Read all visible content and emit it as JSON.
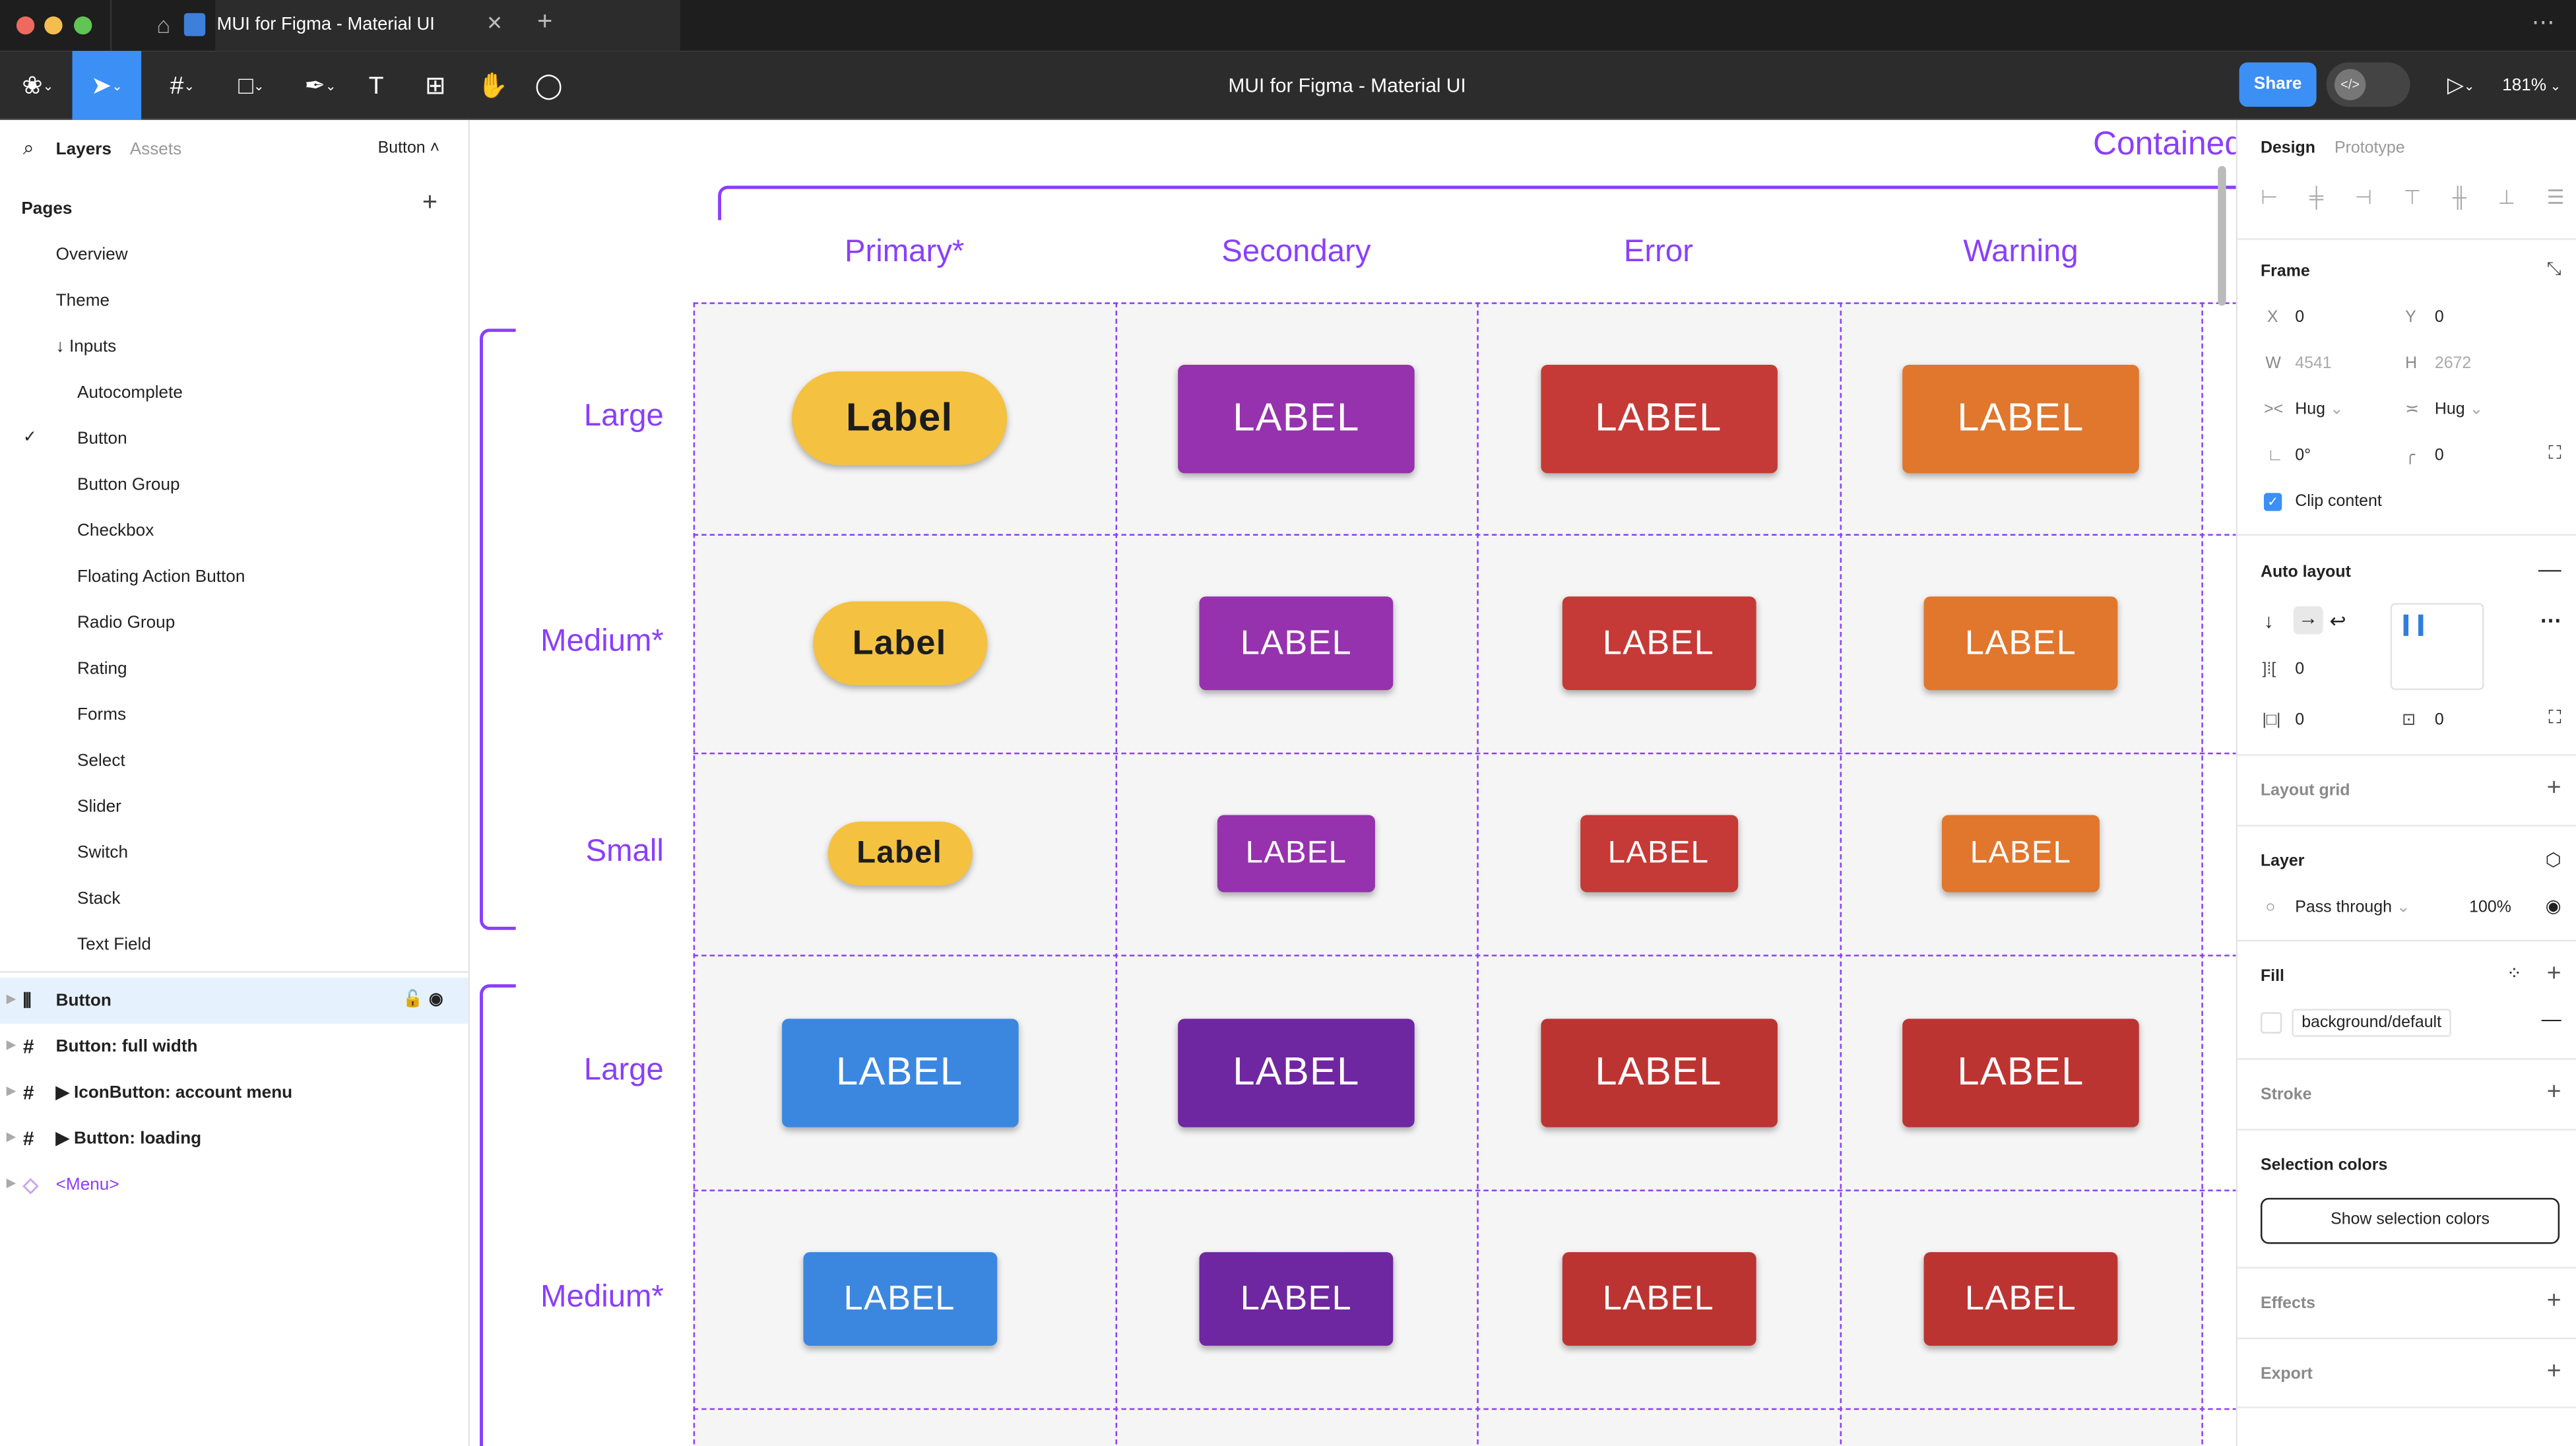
{
  "window": {
    "tab_title": "MUI for Figma - Material UI",
    "doc_title": "MUI for Figma - Material UI",
    "share": "Share",
    "zoom": "181%"
  },
  "left": {
    "tabs": [
      "Layers",
      "Assets"
    ],
    "page_selector": "Button",
    "pages_title": "Pages",
    "pages": [
      "Overview",
      "Theme",
      "↓ Inputs",
      "Autocomplete",
      "Button",
      "Button Group",
      "Checkbox",
      "Floating Action Button",
      "Radio Group",
      "Rating",
      "Forms",
      "Select",
      "Slider",
      "Switch",
      "Stack",
      "Text Field"
    ],
    "current_page": "Button",
    "layers": [
      {
        "label": "Button",
        "icon": "auto-layout-icon",
        "selected": true
      },
      {
        "label": "Button: full width",
        "icon": "frame-icon"
      },
      {
        "label": "▶ IconButton: account menu",
        "icon": "frame-icon"
      },
      {
        "label": "▶ Button: loading",
        "icon": "frame-icon"
      },
      {
        "label": "<Menu>",
        "icon": "component-icon"
      }
    ]
  },
  "canvas": {
    "title": "Contained",
    "columns": [
      "Primary*",
      "Secondary",
      "Error",
      "Warning"
    ],
    "rows": [
      "Large",
      "Medium*",
      "Small",
      "Large",
      "Medium*"
    ],
    "cells": [
      [
        {
          "t": "Label",
          "c": "#F4C141",
          "pill": true
        },
        {
          "t": "LABEL",
          "c": "#9632AE"
        },
        {
          "t": "LABEL",
          "c": "#C53A36"
        },
        {
          "t": "LABEL",
          "c": "#E1762D"
        }
      ],
      [
        {
          "t": "Label",
          "c": "#F4C141",
          "pill": true
        },
        {
          "t": "LABEL",
          "c": "#9632AE"
        },
        {
          "t": "LABEL",
          "c": "#C53A36"
        },
        {
          "t": "LABEL",
          "c": "#E1762D"
        }
      ],
      [
        {
          "t": "Label",
          "c": "#F4C141",
          "pill": true
        },
        {
          "t": "LABEL",
          "c": "#9632AE"
        },
        {
          "t": "LABEL",
          "c": "#C53A36"
        },
        {
          "t": "LABEL",
          "c": "#E1762D"
        }
      ],
      [
        {
          "t": "LABEL",
          "c": "#3B87E0"
        },
        {
          "t": "LABEL",
          "c": "#6E27A0"
        },
        {
          "t": "LABEL",
          "c": "#BC3432"
        },
        {
          "t": "LABEL",
          "c": "#BC3432"
        }
      ],
      [
        {
          "t": "LABEL",
          "c": "#3B87E0"
        },
        {
          "t": "LABEL",
          "c": "#6E27A0"
        },
        {
          "t": "LABEL",
          "c": "#BC3432"
        },
        {
          "t": "LABEL",
          "c": "#BC3432"
        }
      ]
    ],
    "accent": "#8A3FFC"
  },
  "right": {
    "tabs": [
      "Design",
      "Prototype"
    ],
    "frame": {
      "title": "Frame",
      "x": "0",
      "y": "0",
      "w": "4541",
      "h": "2672",
      "w_mode": "Hug",
      "h_mode": "Hug",
      "rotation": "0°",
      "radius": "0",
      "clip_content": "Clip content",
      "clip_checked": true
    },
    "auto_layout": {
      "title": "Auto layout",
      "gap": "0",
      "padding_h": "0",
      "padding_v": "0"
    },
    "layout_grid": "Layout grid",
    "layer": {
      "title": "Layer",
      "blend": "Pass through",
      "opacity": "100%"
    },
    "fill": {
      "title": "Fill",
      "style": "background/default"
    },
    "stroke": "Stroke",
    "selection_colors": {
      "title": "Selection colors",
      "button": "Show selection colors"
    },
    "effects": "Effects",
    "export": "Export"
  }
}
